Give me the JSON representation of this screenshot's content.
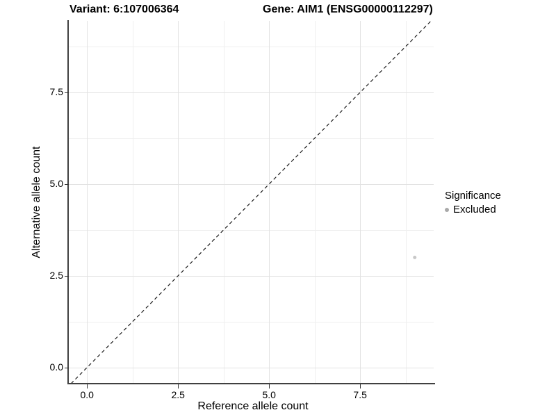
{
  "header": {
    "variant_title": "Variant: 6:107006364",
    "gene_title": "Gene: AIM1 (ENSG00000112297)"
  },
  "chart_data": {
    "type": "scatter",
    "title": "Variant: 6:107006364  |  Gene: AIM1 (ENSG00000112297)",
    "xlabel": "Reference allele count",
    "ylabel": "Alternative allele count",
    "xlim": [
      -0.5,
      9.52
    ],
    "ylim": [
      -0.44,
      9.45
    ],
    "x_ticks": [
      0,
      2.5,
      5,
      7.5
    ],
    "x_tick_labels": [
      "0.0",
      "2.5",
      "5.0",
      "7.5"
    ],
    "y_ticks": [
      0,
      2.5,
      5,
      7.5
    ],
    "y_tick_labels": [
      "0.0",
      "2.5",
      "5.0",
      "7.5"
    ],
    "x_minor": [
      1.25,
      3.75,
      6.25,
      8.75
    ],
    "y_minor": [
      1.25,
      3.75,
      6.25,
      8.75
    ],
    "grid": true,
    "series": [
      {
        "name": "Excluded",
        "color": "#c8c8c8",
        "point_radius": 2.5,
        "points": [
          [
            9,
            3
          ]
        ]
      }
    ],
    "identity_line": {
      "style": "dashed",
      "color": "#1a1a1a"
    },
    "legend": {
      "title": "Significance",
      "position": "right",
      "items": [
        {
          "label": "Excluded",
          "color": "#a9a9a9"
        }
      ]
    }
  },
  "colors": {
    "background": "#ffffff",
    "grid_major": "#e2e2e2",
    "grid_minor": "#efefef",
    "axis": "#404040",
    "text": "#000000"
  }
}
